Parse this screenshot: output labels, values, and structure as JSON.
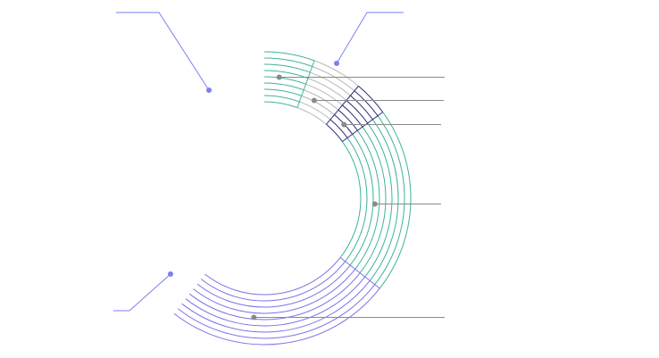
{
  "colors": {
    "green": "#3db39a",
    "gray": "#b8b8b8",
    "navy": "#2b2f7a",
    "purple": "#7b72e6",
    "leader_gray": "#8a8a8a",
    "callout_blue": "#7b7ff0",
    "background": "#ffffff"
  },
  "segments": [
    {
      "name": "green-upper",
      "color_key": "green"
    },
    {
      "name": "gray",
      "color_key": "gray"
    },
    {
      "name": "navy",
      "color_key": "navy"
    },
    {
      "name": "green-right",
      "color_key": "green"
    },
    {
      "name": "purple",
      "color_key": "purple"
    }
  ],
  "callouts": {
    "left_top": {
      "label": ""
    },
    "right_top": {
      "label": ""
    },
    "left_bottom": {
      "label": ""
    }
  },
  "labels": [
    "",
    "",
    "",
    "",
    ""
  ]
}
